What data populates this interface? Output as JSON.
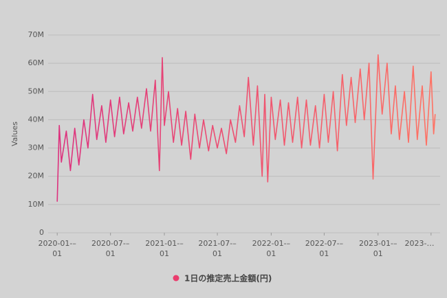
{
  "chart_data": {
    "type": "line",
    "y_label": "Values",
    "x": [
      "2020-01-01",
      "2020-01-08",
      "2020-01-15",
      "2020-02-01",
      "2020-02-15",
      "2020-03-01",
      "2020-03-15",
      "2020-04-01",
      "2020-04-15",
      "2020-05-01",
      "2020-05-15",
      "2020-06-01",
      "2020-06-15",
      "2020-07-01",
      "2020-07-15",
      "2020-08-01",
      "2020-08-15",
      "2020-09-01",
      "2020-09-15",
      "2020-10-01",
      "2020-10-15",
      "2020-11-01",
      "2020-11-15",
      "2020-12-01",
      "2020-12-15",
      "2020-12-25",
      "2021-01-01",
      "2021-01-15",
      "2021-02-01",
      "2021-02-15",
      "2021-03-01",
      "2021-03-15",
      "2021-04-01",
      "2021-04-15",
      "2021-05-01",
      "2021-05-15",
      "2021-06-01",
      "2021-06-15",
      "2021-07-01",
      "2021-07-15",
      "2021-08-01",
      "2021-08-15",
      "2021-09-01",
      "2021-09-15",
      "2021-10-01",
      "2021-10-15",
      "2021-11-01",
      "2021-11-15",
      "2021-12-01",
      "2021-12-10",
      "2021-12-20",
      "2022-01-01",
      "2022-01-15",
      "2022-02-01",
      "2022-02-15",
      "2022-03-01",
      "2022-03-15",
      "2022-04-01",
      "2022-04-15",
      "2022-05-01",
      "2022-05-15",
      "2022-06-01",
      "2022-06-15",
      "2022-07-01",
      "2022-07-15",
      "2022-08-01",
      "2022-08-15",
      "2022-09-01",
      "2022-09-15",
      "2022-10-01",
      "2022-10-15",
      "2022-11-01",
      "2022-11-15",
      "2022-12-01",
      "2022-12-15",
      "2023-01-01",
      "2023-01-15",
      "2023-02-01",
      "2023-02-15",
      "2023-03-01",
      "2023-03-15",
      "2023-04-01",
      "2023-04-15",
      "2023-05-01",
      "2023-05-15",
      "2023-06-01",
      "2023-06-15",
      "2023-07-01",
      "2023-07-10",
      "2023-07-15"
    ],
    "series": [
      {
        "name": "1日の推定売上金額(円)",
        "color": "#ea3d6e",
        "gradient": [
          "#dc2f7e",
          "#ff7363"
        ],
        "values": [
          11000000,
          38000000,
          25000000,
          36000000,
          22000000,
          37000000,
          24000000,
          40000000,
          30000000,
          49000000,
          33000000,
          45000000,
          32000000,
          47000000,
          34000000,
          48000000,
          35000000,
          46000000,
          36000000,
          48000000,
          37000000,
          51000000,
          36000000,
          54000000,
          22000000,
          62000000,
          38000000,
          50000000,
          32000000,
          44000000,
          31000000,
          43000000,
          26000000,
          42000000,
          30000000,
          40000000,
          29000000,
          38000000,
          30000000,
          37000000,
          28000000,
          40000000,
          32000000,
          45000000,
          34000000,
          55000000,
          31000000,
          52000000,
          20000000,
          49000000,
          18000000,
          48000000,
          33000000,
          47000000,
          31000000,
          46000000,
          32000000,
          48000000,
          30000000,
          47000000,
          31000000,
          45000000,
          30000000,
          49000000,
          32000000,
          50000000,
          29000000,
          56000000,
          38000000,
          55000000,
          39000000,
          58000000,
          40000000,
          60000000,
          19000000,
          63000000,
          42000000,
          60000000,
          35000000,
          52000000,
          33000000,
          50000000,
          32000000,
          59000000,
          33000000,
          52000000,
          31000000,
          57000000,
          35000000,
          42000000
        ]
      }
    ],
    "xlim": [
      "2019-12-01",
      "2023-08-01"
    ],
    "xticks": [
      "2020-01-01",
      "2020-07-01",
      "2021-01-01",
      "2021-07-01",
      "2022-01-01",
      "2022-07-01",
      "2023-01-01",
      {
        "value": "2023-07-01",
        "label": "2023-…"
      }
    ],
    "ylim": [
      0,
      70000000
    ],
    "yticks": [
      0,
      {
        "value": 10000000,
        "label": "10M"
      },
      {
        "value": 20000000,
        "label": "20M"
      },
      {
        "value": 30000000,
        "label": "30M"
      },
      {
        "value": 40000000,
        "label": "40M"
      },
      {
        "value": 50000000,
        "label": "50M"
      },
      {
        "value": 60000000,
        "label": "60M"
      },
      {
        "value": 70000000,
        "label": "70M"
      }
    ],
    "grid": true
  }
}
